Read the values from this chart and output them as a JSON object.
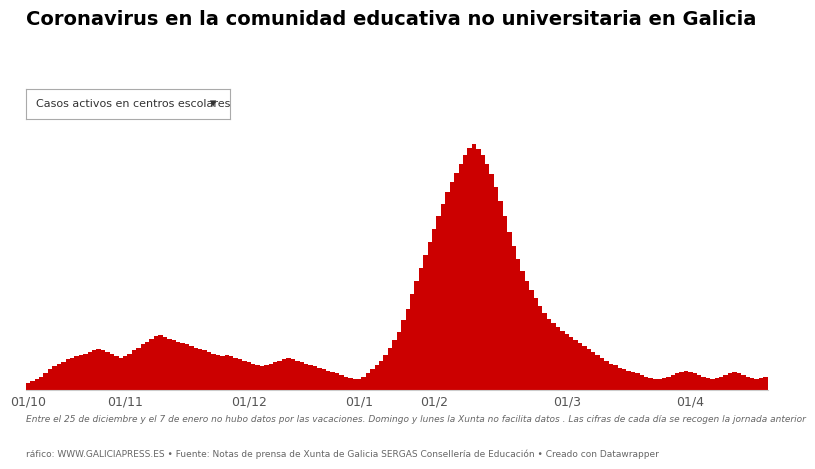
{
  "title": "Coronavirus en la comunidad educativa no universitaria en Galicia",
  "dropdown_label": "Casos activos en centros escolares",
  "bar_color": "#cc0000",
  "background_color": "#ffffff",
  "footnote1": "Entre el 25 de diciembre y el 7 de enero no hubo datos por las vacaciones. Domingo y lunes la Xunta no facilita datos . Las cifras de cada día se recogen la jornada anterior",
  "footnote2": "ráfico: WWW.GALICIAPRESS.ES • Fuente: Notas de prensa de Xunta de Galicia SERGAS Consellería de Educación • Creado con Datawrapper",
  "x_tick_labels": [
    "01/10",
    "01/11",
    "01/12",
    "01/1",
    "01/2",
    "01/3",
    "01/4"
  ],
  "values": [
    12,
    15,
    18,
    22,
    28,
    35,
    40,
    45,
    48,
    52,
    55,
    58,
    60,
    62,
    65,
    68,
    70,
    68,
    65,
    62,
    58,
    55,
    58,
    62,
    68,
    72,
    78,
    82,
    88,
    92,
    95,
    90,
    88,
    85,
    82,
    80,
    78,
    75,
    72,
    70,
    68,
    65,
    62,
    60,
    58,
    60,
    58,
    55,
    52,
    50,
    48,
    45,
    42,
    40,
    42,
    45,
    48,
    50,
    52,
    55,
    52,
    50,
    48,
    45,
    42,
    40,
    38,
    35,
    32,
    30,
    28,
    25,
    22,
    20,
    18,
    18,
    22,
    28,
    35,
    42,
    50,
    60,
    72,
    85,
    100,
    120,
    140,
    165,
    188,
    210,
    232,
    255,
    278,
    300,
    320,
    342,
    358,
    375,
    390,
    405,
    418,
    425,
    415,
    405,
    390,
    372,
    350,
    325,
    300,
    272,
    248,
    225,
    205,
    188,
    172,
    158,
    145,
    132,
    122,
    115,
    108,
    102,
    96,
    90,
    85,
    80,
    75,
    70,
    65,
    60,
    55,
    50,
    45,
    42,
    38,
    35,
    32,
    30,
    28,
    25,
    22,
    20,
    18,
    18,
    20,
    22,
    25,
    28,
    30,
    32,
    30,
    28,
    25,
    22,
    20,
    18,
    20,
    22,
    25,
    28,
    30,
    28,
    25,
    22,
    20,
    18,
    20,
    22
  ],
  "tick_positions": [
    0,
    22,
    50,
    75,
    92,
    122,
    150
  ],
  "ylim": [
    0,
    440
  ],
  "title_fontsize": 14,
  "footnote_fontsize": 6.5
}
